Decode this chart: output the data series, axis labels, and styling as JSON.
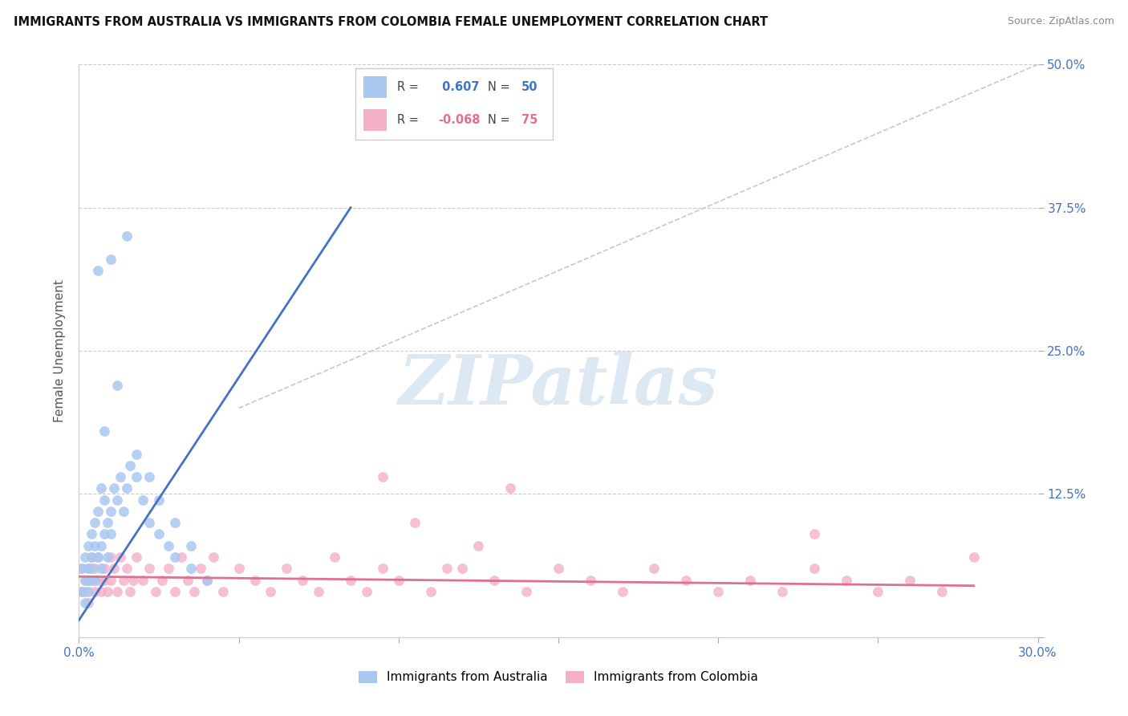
{
  "title": "IMMIGRANTS FROM AUSTRALIA VS IMMIGRANTS FROM COLOMBIA FEMALE UNEMPLOYMENT CORRELATION CHART",
  "source": "Source: ZipAtlas.com",
  "ylabel": "Female Unemployment",
  "x_min": 0.0,
  "x_max": 0.3,
  "y_min": 0.0,
  "y_max": 0.5,
  "right_yticks": [
    0.0,
    0.125,
    0.25,
    0.375,
    0.5
  ],
  "right_yticklabels": [
    "",
    "12.5%",
    "25.0%",
    "37.5%",
    "50.0%"
  ],
  "australia_R": 0.607,
  "australia_N": 50,
  "colombia_R": -0.068,
  "colombia_N": 75,
  "australia_color": "#a8c8f0",
  "australia_line_color": "#4472c4",
  "colombia_color": "#f4b0c8",
  "colombia_line_color": "#e07090",
  "ref_line_color": "#c8c8c8",
  "background_color": "#ffffff",
  "grid_color": "#cccccc",
  "watermark_text": "ZIPatlas",
  "australia_x": [
    0.001,
    0.001,
    0.002,
    0.002,
    0.002,
    0.003,
    0.003,
    0.003,
    0.003,
    0.004,
    0.004,
    0.004,
    0.005,
    0.005,
    0.005,
    0.006,
    0.006,
    0.007,
    0.007,
    0.007,
    0.008,
    0.008,
    0.009,
    0.009,
    0.01,
    0.01,
    0.011,
    0.012,
    0.013,
    0.014,
    0.015,
    0.016,
    0.018,
    0.02,
    0.022,
    0.025,
    0.028,
    0.03,
    0.035,
    0.04,
    0.006,
    0.008,
    0.01,
    0.012,
    0.015,
    0.018,
    0.022,
    0.025,
    0.03,
    0.035
  ],
  "australia_y": [
    0.04,
    0.06,
    0.05,
    0.07,
    0.03,
    0.05,
    0.08,
    0.06,
    0.04,
    0.07,
    0.06,
    0.09,
    0.05,
    0.08,
    0.1,
    0.07,
    0.11,
    0.08,
    0.06,
    0.13,
    0.09,
    0.12,
    0.07,
    0.1,
    0.09,
    0.11,
    0.13,
    0.12,
    0.14,
    0.11,
    0.13,
    0.15,
    0.14,
    0.12,
    0.1,
    0.09,
    0.08,
    0.07,
    0.06,
    0.05,
    0.32,
    0.18,
    0.33,
    0.22,
    0.35,
    0.16,
    0.14,
    0.12,
    0.1,
    0.08
  ],
  "colombia_x": [
    0.001,
    0.001,
    0.002,
    0.002,
    0.003,
    0.003,
    0.003,
    0.004,
    0.004,
    0.005,
    0.005,
    0.006,
    0.006,
    0.007,
    0.008,
    0.008,
    0.009,
    0.01,
    0.01,
    0.011,
    0.012,
    0.013,
    0.014,
    0.015,
    0.016,
    0.017,
    0.018,
    0.02,
    0.022,
    0.024,
    0.026,
    0.028,
    0.03,
    0.032,
    0.034,
    0.036,
    0.038,
    0.04,
    0.042,
    0.045,
    0.05,
    0.055,
    0.06,
    0.065,
    0.07,
    0.075,
    0.08,
    0.085,
    0.09,
    0.095,
    0.1,
    0.11,
    0.12,
    0.13,
    0.14,
    0.15,
    0.16,
    0.17,
    0.18,
    0.19,
    0.2,
    0.21,
    0.22,
    0.23,
    0.24,
    0.25,
    0.26,
    0.27,
    0.095,
    0.105,
    0.115,
    0.125,
    0.135,
    0.23,
    0.28
  ],
  "colombia_y": [
    0.04,
    0.06,
    0.05,
    0.04,
    0.06,
    0.05,
    0.03,
    0.05,
    0.07,
    0.04,
    0.06,
    0.05,
    0.07,
    0.04,
    0.06,
    0.05,
    0.04,
    0.07,
    0.05,
    0.06,
    0.04,
    0.07,
    0.05,
    0.06,
    0.04,
    0.05,
    0.07,
    0.05,
    0.06,
    0.04,
    0.05,
    0.06,
    0.04,
    0.07,
    0.05,
    0.04,
    0.06,
    0.05,
    0.07,
    0.04,
    0.06,
    0.05,
    0.04,
    0.06,
    0.05,
    0.04,
    0.07,
    0.05,
    0.04,
    0.06,
    0.05,
    0.04,
    0.06,
    0.05,
    0.04,
    0.06,
    0.05,
    0.04,
    0.06,
    0.05,
    0.04,
    0.05,
    0.04,
    0.06,
    0.05,
    0.04,
    0.05,
    0.04,
    0.14,
    0.1,
    0.06,
    0.08,
    0.13,
    0.09,
    0.07
  ],
  "aus_line_x": [
    0.0,
    0.085
  ],
  "aus_line_y": [
    0.015,
    0.375
  ],
  "col_line_x": [
    0.0,
    0.28
  ],
  "col_line_y": [
    0.053,
    0.045
  ],
  "ref_line_x": [
    0.05,
    0.3
  ],
  "ref_line_y": [
    0.2,
    0.5
  ]
}
